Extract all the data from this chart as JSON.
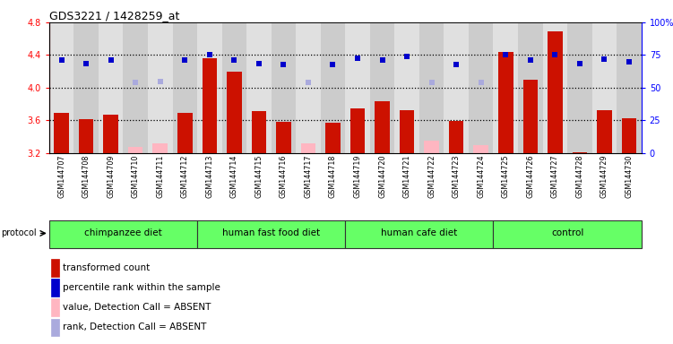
{
  "title": "GDS3221 / 1428259_at",
  "samples": [
    "GSM144707",
    "GSM144708",
    "GSM144709",
    "GSM144710",
    "GSM144711",
    "GSM144712",
    "GSM144713",
    "GSM144714",
    "GSM144715",
    "GSM144716",
    "GSM144717",
    "GSM144718",
    "GSM144719",
    "GSM144720",
    "GSM144721",
    "GSM144722",
    "GSM144723",
    "GSM144724",
    "GSM144725",
    "GSM144726",
    "GSM144727",
    "GSM144728",
    "GSM144729",
    "GSM144730"
  ],
  "red_values": [
    3.69,
    3.61,
    3.67,
    null,
    null,
    3.69,
    4.36,
    4.2,
    3.71,
    3.58,
    null,
    3.57,
    3.75,
    3.83,
    3.72,
    null,
    3.59,
    null,
    4.44,
    4.1,
    4.69,
    3.21,
    3.72,
    3.63
  ],
  "pink_values": [
    null,
    null,
    null,
    3.27,
    3.32,
    null,
    null,
    null,
    null,
    null,
    3.32,
    null,
    null,
    null,
    null,
    3.35,
    null,
    3.3,
    null,
    null,
    null,
    null,
    null,
    null
  ],
  "blue_values": [
    4.34,
    4.3,
    4.34,
    null,
    null,
    4.34,
    4.4,
    4.34,
    4.3,
    4.28,
    null,
    4.28,
    4.36,
    4.34,
    4.38,
    null,
    4.28,
    null,
    4.4,
    4.34,
    4.4,
    4.3,
    4.35,
    4.32
  ],
  "lightblue_values": [
    null,
    null,
    null,
    4.06,
    4.08,
    null,
    null,
    null,
    null,
    null,
    4.06,
    null,
    null,
    null,
    null,
    4.06,
    null,
    4.06,
    null,
    null,
    null,
    null,
    null,
    null
  ],
  "groups": [
    {
      "label": "chimpanzee diet",
      "start": 0,
      "end": 5
    },
    {
      "label": "human fast food diet",
      "start": 6,
      "end": 11
    },
    {
      "label": "human cafe diet",
      "start": 12,
      "end": 17
    },
    {
      "label": "control",
      "start": 18,
      "end": 23
    }
  ],
  "ylim_left": [
    3.2,
    4.8
  ],
  "ylim_right": [
    0,
    100
  ],
  "yticks_left": [
    3.2,
    3.6,
    4.0,
    4.4,
    4.8
  ],
  "yticks_right_vals": [
    0,
    25,
    50,
    75,
    100
  ],
  "yticks_right_labels": [
    "0",
    "25",
    "50",
    "75",
    "100%"
  ],
  "bar_color": "#CC1100",
  "pink_color": "#FFB6C1",
  "blue_color": "#0000CC",
  "lightblue_color": "#AAAADD",
  "grid_lines": [
    3.6,
    4.0,
    4.4
  ],
  "bg_color_even": "#E0E0E0",
  "bg_color_odd": "#CCCCCC",
  "group_color": "#66FF66",
  "legend_items": [
    {
      "label": "transformed count",
      "color": "#CC1100"
    },
    {
      "label": "percentile rank within the sample",
      "color": "#0000CC"
    },
    {
      "label": "value, Detection Call = ABSENT",
      "color": "#FFB6C1"
    },
    {
      "label": "rank, Detection Call = ABSENT",
      "color": "#AAAADD"
    }
  ]
}
